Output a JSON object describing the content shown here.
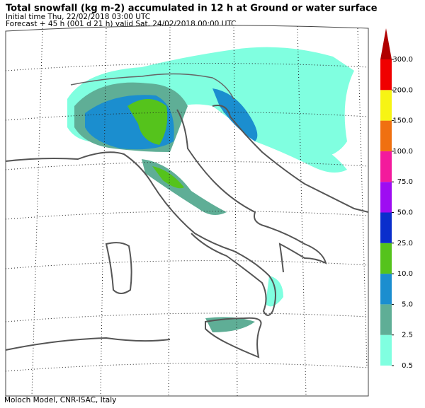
{
  "header": {
    "title": "Total snowfall (kg m-2) accumulated in  12 h at Ground or water surface",
    "initial": "Initial time  Thu, 22/02/2018  03:00 UTC",
    "forecast": "Forecast  +  45 h  (001 d 21 h)  valid Sat, 24/02/2018 00:00 UTC"
  },
  "colorbar": {
    "levels": [
      {
        "value": 0.5,
        "label": "0.5"
      },
      {
        "value": 2.5,
        "label": "2.5"
      },
      {
        "value": 5,
        "label": "5.0"
      },
      {
        "value": 10,
        "label": "10.0"
      },
      {
        "value": 25,
        "label": "25.0"
      },
      {
        "value": 50,
        "label": "50.0"
      },
      {
        "value": 75,
        "label": "75.0"
      },
      {
        "value": 100,
        "label": "100.0"
      },
      {
        "value": 150,
        "label": "150.0"
      },
      {
        "value": 200,
        "label": "200.0"
      },
      {
        "value": 300,
        "label": "300.0"
      }
    ],
    "colors": [
      "#80ffe0",
      "#5fae96",
      "#1b8ecf",
      "#55c31c",
      "#0a2ecc",
      "#9e0cf2",
      "#f31a9c",
      "#f07010",
      "#f7f414",
      "#f00000",
      "#b00000"
    ]
  },
  "footer": "Moloch Model, CNR-ISAC, Italy"
}
